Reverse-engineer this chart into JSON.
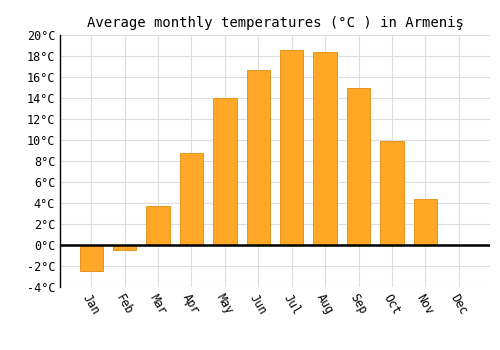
{
  "title": "Average monthly temperatures (°C ) in Armeniş",
  "months": [
    "Jan",
    "Feb",
    "Mar",
    "Apr",
    "May",
    "Jun",
    "Jul",
    "Aug",
    "Sep",
    "Oct",
    "Nov",
    "Dec"
  ],
  "values": [
    -2.5,
    -0.5,
    3.7,
    8.8,
    14.0,
    16.7,
    18.6,
    18.4,
    15.0,
    9.9,
    4.4,
    0.0
  ],
  "bar_color": "#FFA726",
  "bar_edge_color": "#E69520",
  "background_color": "#ffffff",
  "grid_color": "#dddddd",
  "ylim": [
    -4,
    20
  ],
  "yticks": [
    -4,
    -2,
    0,
    2,
    4,
    6,
    8,
    10,
    12,
    14,
    16,
    18,
    20
  ],
  "title_fontsize": 10,
  "tick_fontsize": 8.5,
  "font_family": "monospace"
}
